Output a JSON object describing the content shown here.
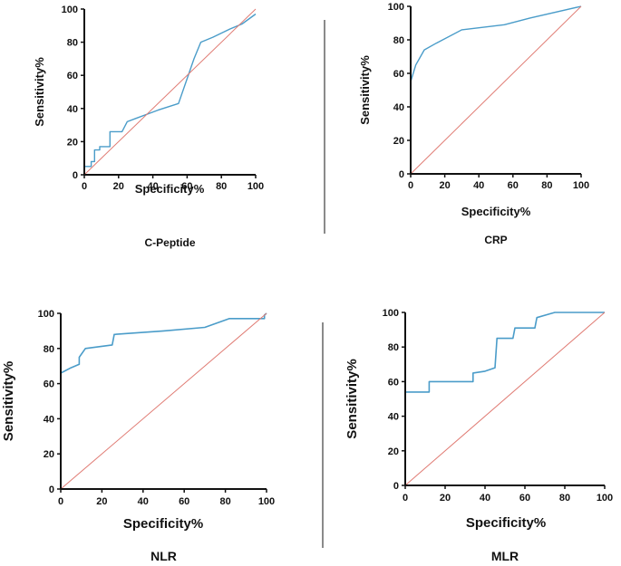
{
  "colors": {
    "roc": "#4a9cc9",
    "reference": "#e07b73",
    "axis": "#111111",
    "divider": "#8a8a8a"
  },
  "chart_data": [
    {
      "type": "line",
      "label": "C-Peptide",
      "xlabel": "Specificity%",
      "ylabel": "Sensitivity%",
      "xlim": [
        0,
        100
      ],
      "ylim": [
        0,
        100
      ],
      "xticks": [
        0,
        20,
        40,
        60,
        80,
        100
      ],
      "yticks": [
        0,
        20,
        40,
        60,
        80,
        100
      ],
      "series": [
        {
          "name": "ROC curve",
          "points": [
            [
              0,
              0
            ],
            [
              0,
              5
            ],
            [
              4,
              5
            ],
            [
              4,
              8
            ],
            [
              6,
              8
            ],
            [
              6,
              15
            ],
            [
              9,
              15
            ],
            [
              9,
              17
            ],
            [
              15,
              17
            ],
            [
              15,
              26
            ],
            [
              22,
              26
            ],
            [
              25,
              32
            ],
            [
              30,
              34
            ],
            [
              43,
              39
            ],
            [
              55,
              43
            ],
            [
              60,
              58
            ],
            [
              64,
              70
            ],
            [
              68,
              80
            ],
            [
              75,
              83
            ],
            [
              85,
              88
            ],
            [
              92,
              91
            ],
            [
              100,
              97
            ]
          ]
        },
        {
          "name": "Reference line",
          "points": [
            [
              0,
              0
            ],
            [
              100,
              100
            ]
          ]
        }
      ]
    },
    {
      "type": "line",
      "label": "CRP",
      "xlabel": "Specificity%",
      "ylabel": "Sensitivity%",
      "xlim": [
        0,
        100
      ],
      "ylim": [
        0,
        100
      ],
      "xticks": [
        0,
        20,
        40,
        60,
        80,
        100
      ],
      "yticks": [
        0,
        20,
        40,
        60,
        80,
        100
      ],
      "series": [
        {
          "name": "ROC curve",
          "points": [
            [
              0,
              0
            ],
            [
              0,
              55
            ],
            [
              3,
              65
            ],
            [
              8,
              74
            ],
            [
              15,
              78
            ],
            [
              30,
              86
            ],
            [
              55,
              89
            ],
            [
              70,
              93
            ],
            [
              100,
              100
            ]
          ]
        },
        {
          "name": "Reference line",
          "points": [
            [
              0,
              0
            ],
            [
              100,
              100
            ]
          ]
        }
      ]
    },
    {
      "type": "line",
      "label": "NLR",
      "xlabel": "Specificity%",
      "ylabel": "Sensitivity%",
      "xlim": [
        0,
        100
      ],
      "ylim": [
        0,
        100
      ],
      "xticks": [
        0,
        20,
        40,
        60,
        80,
        100
      ],
      "yticks": [
        0,
        20,
        40,
        60,
        80,
        100
      ],
      "series": [
        {
          "name": "ROC curve",
          "points": [
            [
              0,
              0
            ],
            [
              0,
              66
            ],
            [
              5,
              69
            ],
            [
              9,
              71
            ],
            [
              9,
              75
            ],
            [
              12,
              80
            ],
            [
              25,
              82
            ],
            [
              26,
              88
            ],
            [
              50,
              90
            ],
            [
              70,
              92
            ],
            [
              82,
              97
            ],
            [
              99,
              97
            ],
            [
              99,
              99
            ],
            [
              100,
              100
            ]
          ]
        },
        {
          "name": "Reference line",
          "points": [
            [
              0,
              0
            ],
            [
              100,
              100
            ]
          ]
        }
      ]
    },
    {
      "type": "line",
      "label": "MLR",
      "xlabel": "Specificity%",
      "ylabel": "Sensitivity%",
      "xlim": [
        0,
        100
      ],
      "ylim": [
        0,
        100
      ],
      "xticks": [
        0,
        20,
        40,
        60,
        80,
        100
      ],
      "yticks": [
        0,
        20,
        40,
        60,
        80,
        100
      ],
      "series": [
        {
          "name": "ROC curve",
          "points": [
            [
              0,
              0
            ],
            [
              0,
              54
            ],
            [
              12,
              54
            ],
            [
              12,
              60
            ],
            [
              34,
              60
            ],
            [
              34,
              65
            ],
            [
              40,
              66
            ],
            [
              45,
              68
            ],
            [
              46,
              85
            ],
            [
              54,
              85
            ],
            [
              55,
              91
            ],
            [
              65,
              91
            ],
            [
              66,
              97
            ],
            [
              72,
              99
            ],
            [
              75,
              100
            ],
            [
              100,
              100
            ]
          ]
        },
        {
          "name": "Reference line",
          "points": [
            [
              0,
              0
            ],
            [
              100,
              100
            ]
          ]
        }
      ]
    }
  ]
}
